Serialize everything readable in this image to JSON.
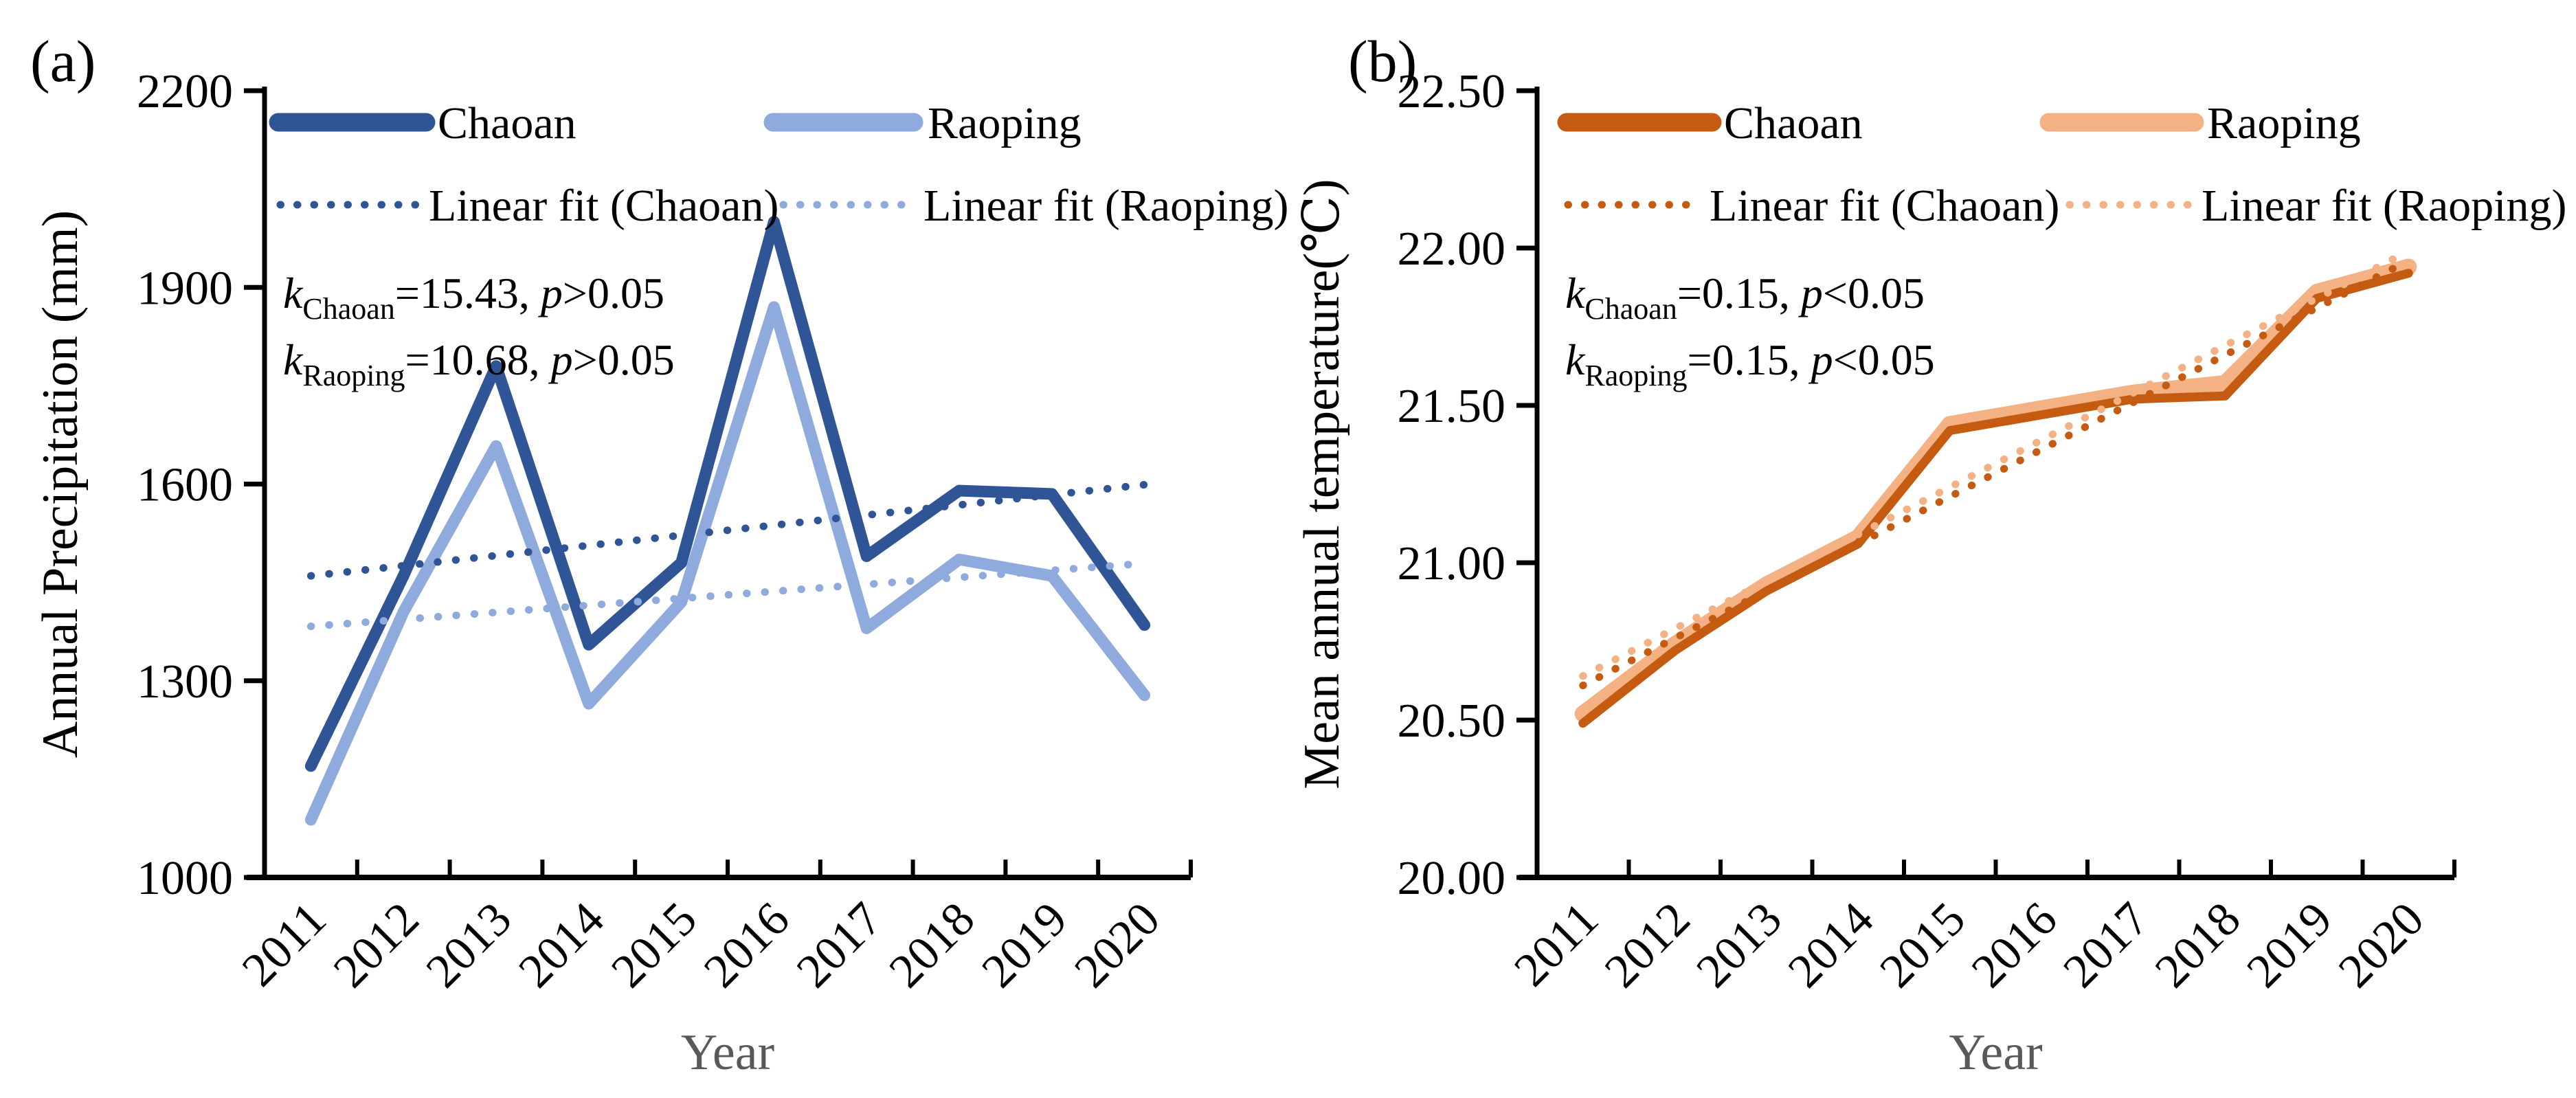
{
  "figure": {
    "background": "#FFFFFF",
    "axis_color": "#000000",
    "tick_label_color": "#000000",
    "xlabel_color": "#595959"
  },
  "chart_data": [
    {
      "type": "line",
      "panel_label": "(a)",
      "xlabel": "Year",
      "ylabel": "Annual Precipitation (mm)",
      "categories": [
        "2011",
        "2012",
        "2013",
        "2014",
        "2015",
        "2016",
        "2017",
        "2018",
        "2019",
        "2020"
      ],
      "ylim": [
        1000,
        2200
      ],
      "yticks": [
        1000,
        1300,
        1600,
        1900,
        2200
      ],
      "ytick_labels": [
        "1000",
        "1300",
        "1600",
        "1900",
        "2200"
      ],
      "grid": false,
      "legend_position": "top-inside",
      "series": [
        {
          "name": "Chaoan",
          "color": "#2F5597",
          "style": "solid",
          "values": [
            1170,
            1460,
            1780,
            1355,
            1480,
            2000,
            1490,
            1590,
            1585,
            1385
          ]
        },
        {
          "name": "Raoping",
          "color": "#8FAADC",
          "style": "solid",
          "values": [
            1088,
            1405,
            1658,
            1265,
            1420,
            1870,
            1380,
            1485,
            1460,
            1278
          ]
        }
      ],
      "fit_lines": [
        {
          "name": "Linear fit (Chaoan)",
          "color": "#2F5597",
          "style": "dotted",
          "start": 1460,
          "end": 1599,
          "slope_per_year": 15.43
        },
        {
          "name": "Linear fit (Raoping)",
          "color": "#8FAADC",
          "style": "dotted",
          "start": 1383,
          "end": 1479,
          "slope_per_year": 10.68
        }
      ],
      "annotations": [
        {
          "var": "k",
          "sub": "Chaoan",
          "eq": "=15.43,",
          "pvar": "p",
          "cmp": ">0.05"
        },
        {
          "var": "k",
          "sub": "Raoping",
          "eq": "=10.68,",
          "pvar": "p",
          "cmp": ">0.05"
        }
      ]
    },
    {
      "type": "line",
      "panel_label": "(b)",
      "xlabel": "Year",
      "ylabel": "Mean annual temperature(℃)",
      "categories": [
        "2011",
        "2012",
        "2013",
        "2014",
        "2015",
        "2016",
        "2017",
        "2018",
        "2019",
        "2020"
      ],
      "ylim": [
        20.0,
        22.5
      ],
      "yticks": [
        20.0,
        20.5,
        21.0,
        21.5,
        22.0,
        22.5
      ],
      "ytick_labels": [
        "20.00",
        "20.50",
        "21.00",
        "21.50",
        "22.00",
        "22.50"
      ],
      "grid": false,
      "legend_position": "top-inside",
      "series": [
        {
          "name": "Chaoan",
          "color": "#C55A11",
          "style": "solid",
          "values": [
            20.49,
            20.72,
            20.91,
            21.06,
            21.42,
            21.47,
            21.52,
            21.53,
            21.84,
            21.92
          ]
        },
        {
          "name": "Raoping",
          "color": "#F4B183",
          "style": "solid",
          "values": [
            20.52,
            20.74,
            20.93,
            21.08,
            21.44,
            21.49,
            21.54,
            21.57,
            21.86,
            21.94
          ]
        }
      ],
      "fit_lines": [
        {
          "name": "Linear fit (Chaoan)",
          "color": "#C55A11",
          "style": "dotted",
          "start": 20.61,
          "end": 21.96,
          "slope_per_year": 0.15
        },
        {
          "name": "Linear fit (Raoping)",
          "color": "#F4B183",
          "style": "dotted",
          "start": 20.64,
          "end": 21.99,
          "slope_per_year": 0.15
        }
      ],
      "annotations": [
        {
          "var": "k",
          "sub": "Chaoan",
          "eq": "=0.15,",
          "pvar": "p",
          "cmp": "<0.05"
        },
        {
          "var": "k",
          "sub": "Raoping",
          "eq": "=0.15,",
          "pvar": "p",
          "cmp": "<0.05"
        }
      ]
    }
  ]
}
